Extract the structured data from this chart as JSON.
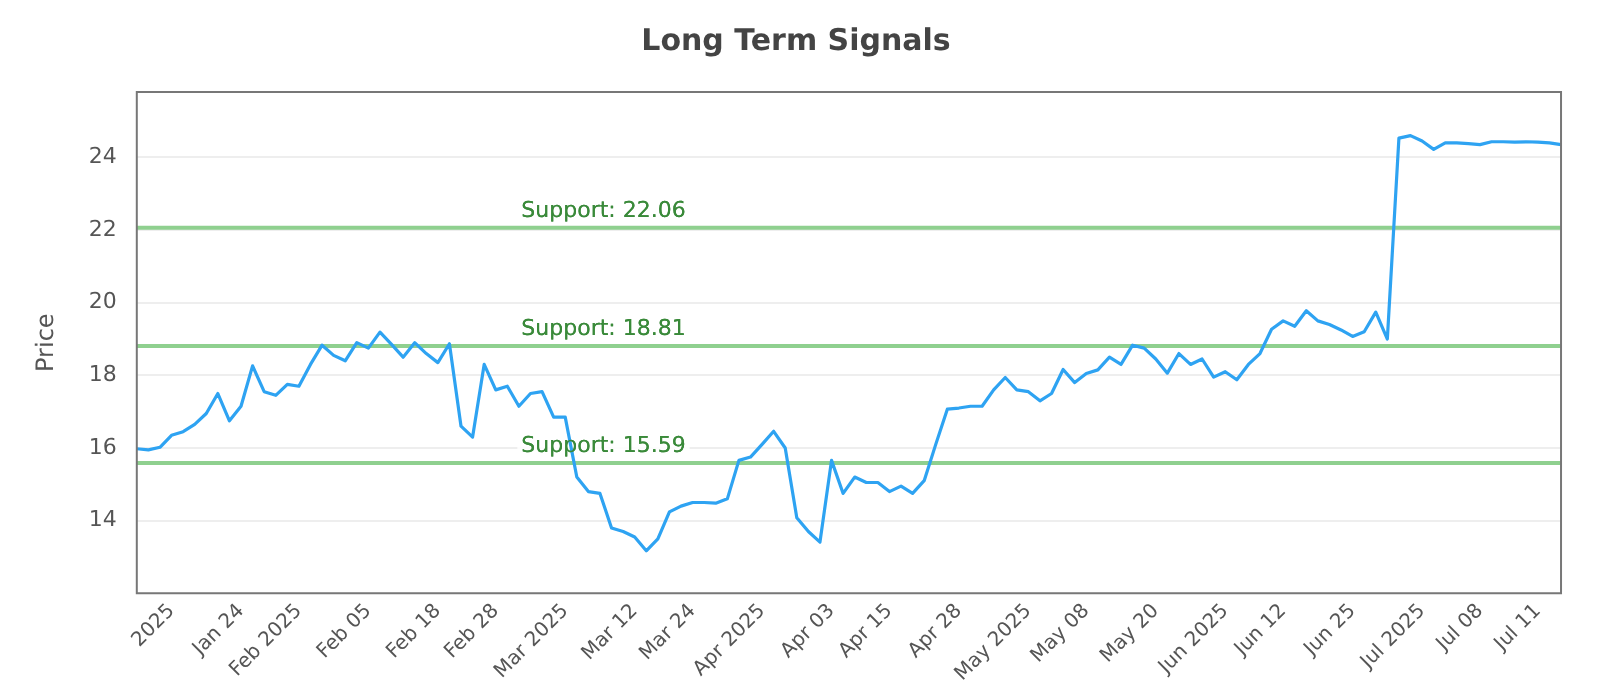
{
  "chart_data": {
    "type": "line",
    "title": "Long Term Signals",
    "ylabel": "Price",
    "categories": [
      null,
      null,
      null,
      "2025",
      null,
      null,
      null,
      null,
      null,
      "Jan 24",
      null,
      null,
      null,
      null,
      "Feb 2025",
      null,
      null,
      null,
      null,
      null,
      "Feb 05",
      null,
      null,
      null,
      null,
      null,
      "Feb 18",
      null,
      null,
      null,
      null,
      "Feb 28",
      null,
      null,
      null,
      null,
      null,
      "Mar 2025",
      null,
      null,
      null,
      null,
      null,
      "Mar 12",
      null,
      null,
      null,
      null,
      "Mar 24",
      null,
      null,
      null,
      null,
      null,
      "Apr 2025",
      null,
      null,
      null,
      null,
      null,
      "Apr 03",
      null,
      null,
      null,
      null,
      "Apr 15",
      null,
      null,
      null,
      null,
      null,
      "Apr 28",
      null,
      null,
      null,
      null,
      null,
      "May 2025",
      null,
      null,
      null,
      null,
      "May 08",
      null,
      null,
      null,
      null,
      null,
      "May 20",
      null,
      null,
      null,
      null,
      null,
      "Jun 2025",
      null,
      null,
      null,
      null,
      "Jun 12",
      null,
      null,
      null,
      null,
      null,
      "Jun 25",
      null,
      null,
      null,
      null,
      null,
      "Jul 2025",
      null,
      null,
      null,
      null,
      "Jul 08",
      null,
      null,
      null,
      null,
      "Jul 11",
      null,
      null
    ],
    "series": [
      {
        "color": "#2ea3f2",
        "values": [
          15.98,
          15.95,
          16.02,
          16.35,
          16.45,
          16.65,
          16.95,
          17.5,
          16.75,
          17.15,
          18.26,
          17.55,
          17.45,
          17.75,
          17.7,
          18.3,
          18.83,
          18.55,
          18.4,
          18.9,
          18.75,
          19.19,
          18.85,
          18.5,
          18.9,
          18.6,
          18.35,
          18.87,
          16.6,
          16.3,
          18.3,
          17.6,
          17.7,
          17.15,
          17.5,
          17.55,
          16.85,
          16.85,
          15.2,
          14.8,
          14.75,
          13.8,
          13.7,
          13.55,
          13.17,
          13.5,
          14.24,
          14.4,
          14.5,
          14.5,
          14.48,
          14.6,
          15.66,
          15.75,
          16.1,
          16.46,
          16.0,
          14.08,
          13.7,
          13.41,
          15.66,
          14.75,
          15.2,
          15.05,
          15.05,
          14.8,
          14.95,
          14.75,
          15.1,
          16.1,
          17.07,
          17.1,
          17.15,
          17.15,
          17.6,
          17.94,
          17.6,
          17.55,
          17.3,
          17.5,
          18.16,
          17.8,
          18.05,
          18.15,
          18.5,
          18.3,
          18.83,
          18.75,
          18.45,
          18.06,
          18.6,
          18.3,
          18.45,
          17.95,
          18.1,
          17.88,
          18.3,
          18.6,
          19.27,
          19.5,
          19.35,
          19.78,
          19.5,
          19.4,
          19.25,
          19.07,
          19.2,
          19.74,
          19.0,
          24.53,
          24.6,
          24.45,
          24.22,
          24.4,
          24.4,
          24.38,
          24.35,
          24.43,
          24.43,
          24.42,
          24.43,
          24.42,
          24.4,
          24.35
        ]
      }
    ],
    "ylim": [
      12,
      25.8
    ],
    "yticks": [
      14,
      16,
      18,
      20,
      22,
      24
    ],
    "grid": "y",
    "legend": false,
    "marker": "none",
    "line_style": "solid",
    "ref_lines": [
      {
        "axis": "y",
        "value": 22.06,
        "label": "Support: 22.06",
        "color": "#8fd08f"
      },
      {
        "axis": "y",
        "value": 18.81,
        "label": "Support: 18.81",
        "color": "#8fd08f"
      },
      {
        "axis": "y",
        "value": 15.59,
        "label": "Support: 15.59",
        "color": "#8fd08f"
      }
    ]
  }
}
